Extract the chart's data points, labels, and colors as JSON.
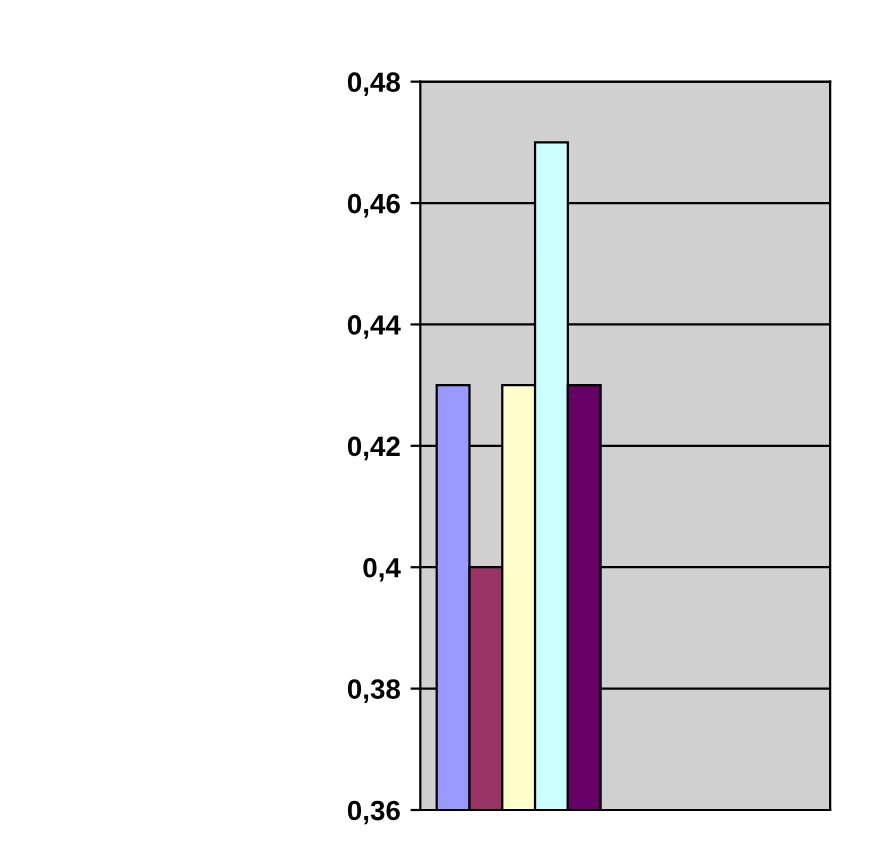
{
  "chart_data": {
    "type": "bar",
    "categories": [
      null,
      null,
      null,
      null,
      null
    ],
    "values": [
      0.43,
      0.4,
      0.43,
      0.47,
      0.43
    ],
    "colors": [
      "#9999ff",
      "#993366",
      "#ffffcc",
      "#ccffff",
      "#660066"
    ],
    "ylim": [
      0.36,
      0.48
    ],
    "yticks": [
      {
        "value": 0.36,
        "label": "0,36"
      },
      {
        "value": 0.38,
        "label": "0,38"
      },
      {
        "value": 0.4,
        "label": "0,4"
      },
      {
        "value": 0.42,
        "label": "0,42"
      },
      {
        "value": 0.44,
        "label": "0,44"
      },
      {
        "value": 0.46,
        "label": "0,46"
      },
      {
        "value": 0.48,
        "label": "0,48"
      }
    ],
    "grid": "y",
    "tick_labels": "y"
  }
}
